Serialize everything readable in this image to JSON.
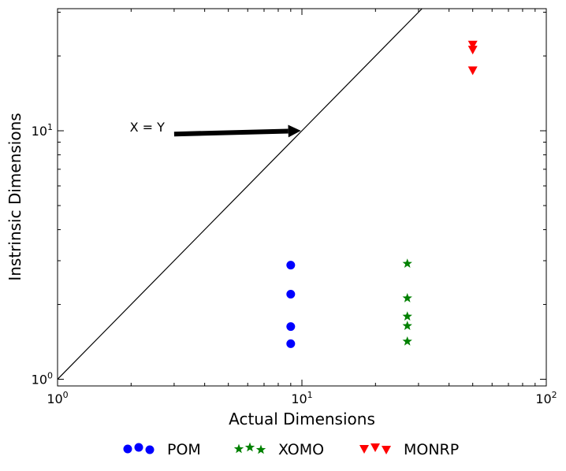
{
  "chart_data": {
    "type": "scatter",
    "xlabel": "Actual Dimensions",
    "ylabel": "Instrinsic Dimensions",
    "x_scale": "log",
    "y_scale": "log",
    "xlim": [
      1,
      100
    ],
    "ylim": [
      0.94,
      31
    ],
    "x_ticks": [
      {
        "value": 1,
        "base": "10",
        "exp": "0"
      },
      {
        "value": 10,
        "base": "10",
        "exp": "1"
      },
      {
        "value": 100,
        "base": "10",
        "exp": "2"
      }
    ],
    "y_ticks": [
      {
        "value": 1,
        "base": "10",
        "exp": "0"
      },
      {
        "value": 10,
        "base": "10",
        "exp": "1"
      }
    ],
    "grid": false,
    "legend_position": "bottom-center",
    "reference_line": {
      "type": "identity",
      "label": "X = Y",
      "color": "#000000"
    },
    "annotation": {
      "text": "X = Y",
      "from": [
        3.0,
        9.7
      ],
      "to": [
        9.9,
        10.0
      ]
    },
    "series": [
      {
        "name": "POM",
        "marker": "circle",
        "color": "#0000ff",
        "x": [
          9,
          9,
          9,
          9
        ],
        "y": [
          2.88,
          2.2,
          1.63,
          1.39
        ]
      },
      {
        "name": "XOMO",
        "marker": "star",
        "color": "#008000",
        "x": [
          27,
          27,
          27,
          27,
          27
        ],
        "y": [
          2.92,
          2.12,
          1.79,
          1.64,
          1.42
        ]
      },
      {
        "name": "MONRP",
        "marker": "triangle-down",
        "color": "#ff0000",
        "x": [
          50,
          50,
          50
        ],
        "y": [
          22.2,
          21.2,
          17.5
        ]
      }
    ]
  }
}
